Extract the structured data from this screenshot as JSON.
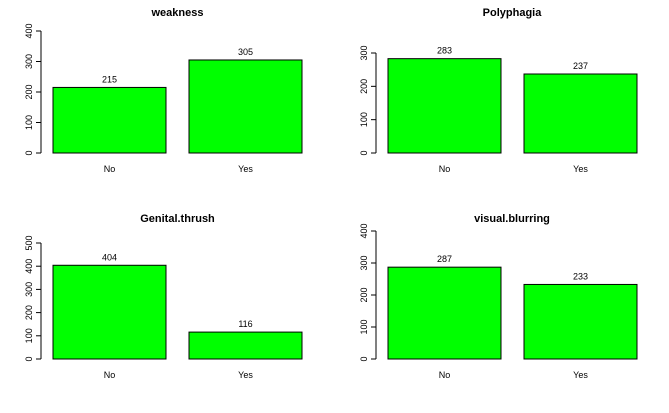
{
  "colors": {
    "bar_fill": "#00ff00",
    "bar_stroke": "#000000",
    "axis": "#000000",
    "background": "#ffffff"
  },
  "chart_data": [
    {
      "type": "bar",
      "title": "weakness",
      "categories": [
        "No",
        "Yes"
      ],
      "values": [
        215,
        305
      ],
      "value_labels": [
        "215",
        "305"
      ],
      "ylim": [
        0,
        400
      ],
      "yticks": [
        0,
        100,
        200,
        300,
        400
      ],
      "ytick_labels": [
        "0",
        "100",
        "200",
        "300",
        "400"
      ],
      "xlabel": "",
      "ylabel": "",
      "grid": false
    },
    {
      "type": "bar",
      "title": "Polyphagia",
      "categories": [
        "No",
        "Yes"
      ],
      "values": [
        283,
        237
      ],
      "value_labels": [
        "283",
        "237"
      ],
      "ylim": [
        0,
        300
      ],
      "yticks": [
        0,
        100,
        200,
        300
      ],
      "ytick_labels": [
        "0",
        "100",
        "200",
        "300"
      ],
      "xlabel": "",
      "ylabel": "",
      "grid": false
    },
    {
      "type": "bar",
      "title": "Genital.thrush",
      "categories": [
        "No",
        "Yes"
      ],
      "values": [
        404,
        116
      ],
      "value_labels": [
        "404",
        "116"
      ],
      "ylim": [
        0,
        500
      ],
      "yticks": [
        0,
        100,
        200,
        300,
        400,
        500
      ],
      "ytick_labels": [
        "0",
        "100",
        "200",
        "300",
        "400",
        "500"
      ],
      "xlabel": "",
      "ylabel": "",
      "grid": false
    },
    {
      "type": "bar",
      "title": "visual.blurring",
      "categories": [
        "No",
        "Yes"
      ],
      "values": [
        287,
        233
      ],
      "value_labels": [
        "287",
        "233"
      ],
      "ylim": [
        0,
        400
      ],
      "yticks": [
        0,
        100,
        200,
        300,
        400
      ],
      "ytick_labels": [
        "0",
        "100",
        "200",
        "300",
        "400"
      ],
      "xlabel": "",
      "ylabel": "",
      "grid": false
    }
  ]
}
